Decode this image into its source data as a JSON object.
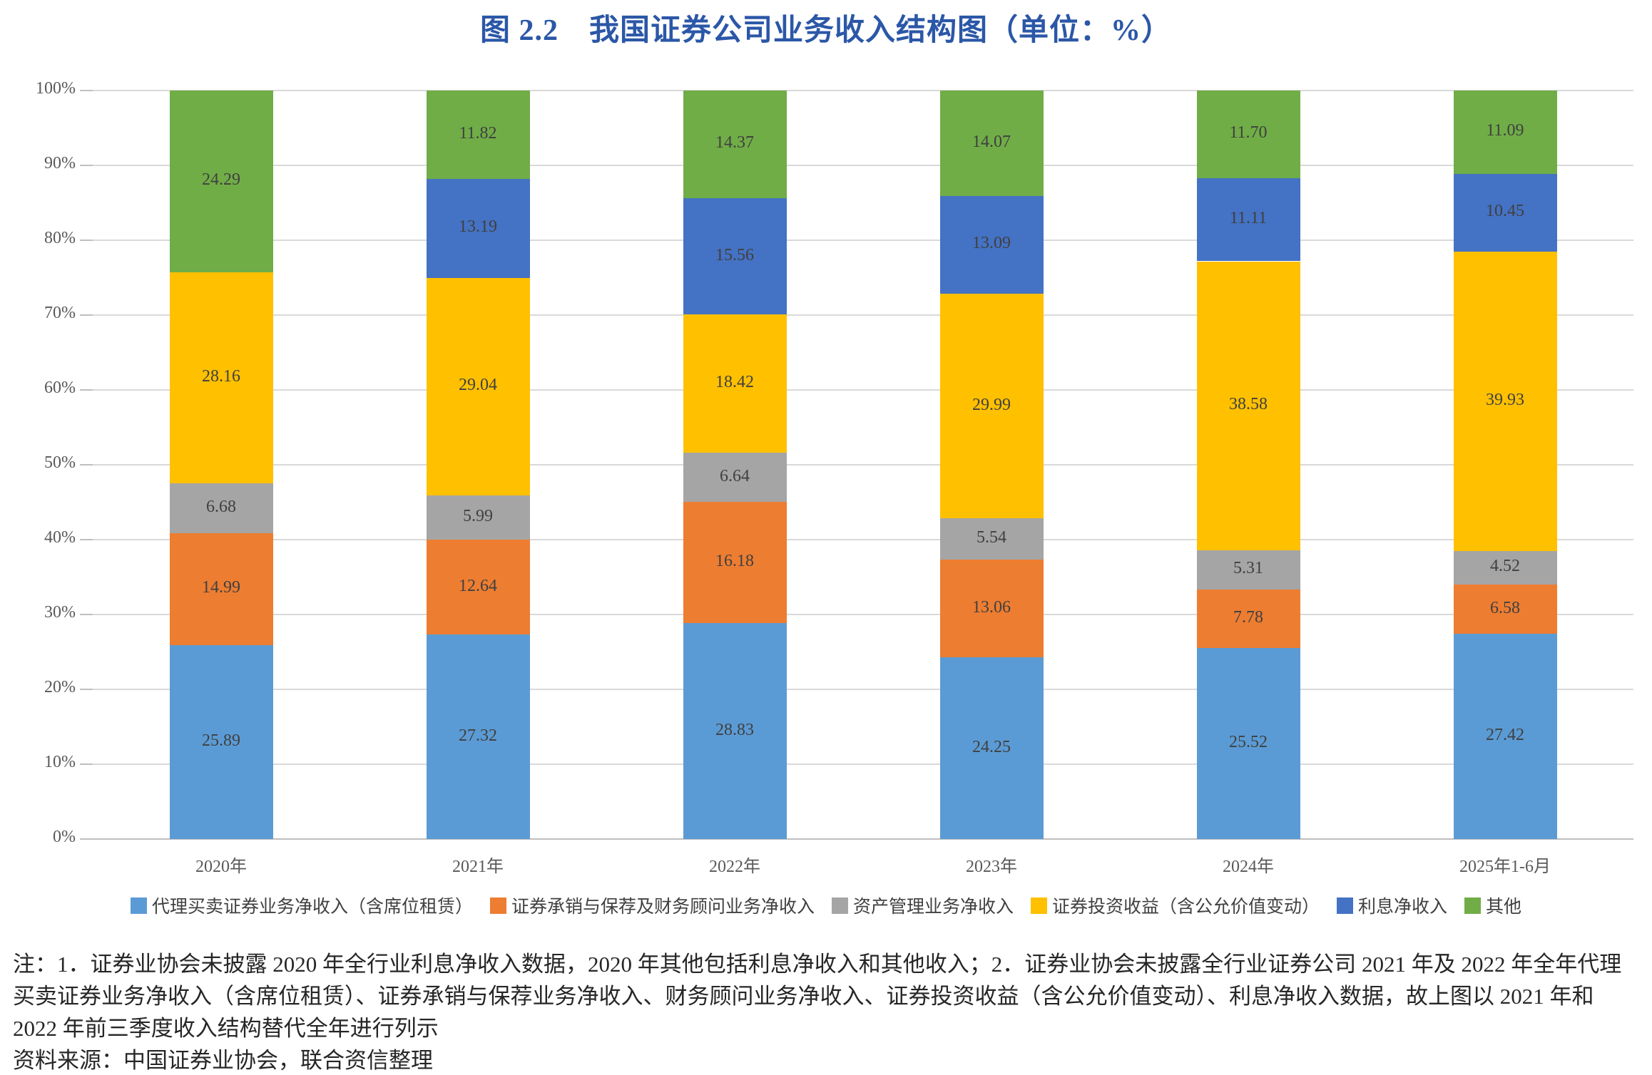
{
  "title": "图 2.2　我国证券公司业务收入结构图（单位：%）",
  "chart_data": {
    "type": "bar",
    "variant": "stacked-percent-column",
    "unit": "%",
    "title": "图 2.2　我国证券公司业务收入结构图（单位：%）",
    "categories": [
      "2020年",
      "2021年",
      "2022年",
      "2023年",
      "2024年",
      "2025年1-6月"
    ],
    "series": [
      {
        "name": "代理买卖证券业务净收入（含席位租赁）",
        "color": "#5B9BD5",
        "values": [
          25.89,
          27.32,
          28.83,
          24.25,
          25.52,
          27.42
        ]
      },
      {
        "name": "证券承销与保荐及财务顾问业务净收入",
        "color": "#ED7D31",
        "values": [
          14.99,
          12.64,
          16.18,
          13.06,
          7.78,
          6.58
        ]
      },
      {
        "name": "资产管理业务净收入",
        "color": "#A5A5A5",
        "values": [
          6.68,
          5.99,
          6.64,
          5.54,
          5.31,
          4.52
        ]
      },
      {
        "name": "证券投资收益（含公允价值变动）",
        "color": "#FFC000",
        "values": [
          28.16,
          29.04,
          18.42,
          29.99,
          38.58,
          39.93
        ]
      },
      {
        "name": "利息净收入",
        "color": "#4472C4",
        "values": [
          null,
          13.19,
          15.56,
          13.09,
          11.11,
          10.45
        ],
        "missing_label": "-"
      },
      {
        "name": "其他",
        "color": "#70AD47",
        "values": [
          24.29,
          11.82,
          14.37,
          14.07,
          11.7,
          11.09
        ]
      }
    ],
    "y_ticks": [
      "0%",
      "10%",
      "20%",
      "30%",
      "40%",
      "50%",
      "60%",
      "70%",
      "80%",
      "90%",
      "100%"
    ],
    "ylim": [
      0,
      100
    ],
    "grid": true,
    "legend_position": "bottom"
  },
  "notes": {
    "note": "注：1．证券业协会未披露 2020 年全行业利息净收入数据，2020 年其他包括利息净收入和其他收入；2．证券业协会未披露全行业证券公司 2021 年及 2022 年全年代理买卖证券业务净收入（含席位租赁）、证券承销与保荐业务净收入、财务顾问业务净收入、证券投资收益（含公允价值变动）、利息净收入数据，故上图以 2021 年和 2022 年前三季度收入结构替代全年进行列示",
    "source": "资料来源：中国证券业协会，联合资信整理"
  },
  "colors": {
    "title_text": "#2B57A7",
    "axis_text": "#595959",
    "value_label": "#404040",
    "gridline": "#D9D9D9",
    "axis_line": "#BFBFBF",
    "note_text": "#262626"
  }
}
